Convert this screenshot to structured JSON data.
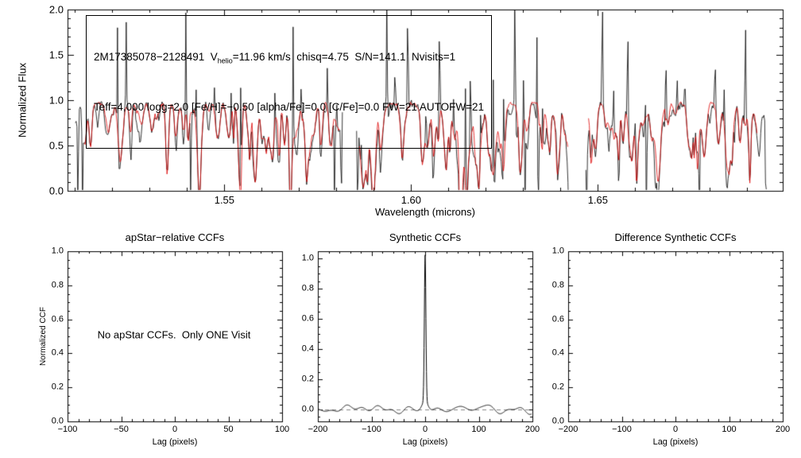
{
  "figure": {
    "background": "#ffffff",
    "axis_color": "#000000"
  },
  "chart_data": [
    {
      "id": "apogee-spectrum",
      "type": "line",
      "title": "",
      "xlabel": "Wavelength (microns)",
      "ylabel": "Normalized Flux",
      "xlim": [
        1.508,
        1.6995
      ],
      "ylim": [
        0.0,
        2.0
      ],
      "xticks": [
        1.55,
        1.6,
        1.65
      ],
      "xtick_labels": [
        "1.55",
        "1.60",
        "1.65"
      ],
      "x_minor_step": 0.01,
      "yticks": [
        0.0,
        0.5,
        1.0,
        1.5,
        2.0
      ],
      "ytick_labels": [
        "0.0",
        "0.5",
        "1.0",
        "1.5",
        "2.0"
      ],
      "y_minor_step": 0.1,
      "annotation": {
        "line1_pre": "2M17385078−2128491  V",
        "v_sub": "helio",
        "line1_post": "=11.96 km/s  chisq=4.75  S/N=141.1  Nvisits=1",
        "line2": "Teff=4,000 logg=2.0 [Fe/H]=−0.50 [alpha/Fe]=0.0 [C/Fe]=0.0 FW=21 AUTOFW=21"
      },
      "series": [
        {
          "name": "observed spectrum",
          "color": "#000000"
        },
        {
          "name": "best-fit synthetic spectrum",
          "color": "#dd0000"
        }
      ],
      "baseline": 0.965,
      "noise_observed": 0.02,
      "noise_model": 0.012,
      "segments": [
        [
          1.5101,
          1.5816
        ],
        [
          1.5854,
          1.6425
        ],
        [
          1.6468,
          1.6953
        ]
      ],
      "model_segments": [
        [
          1.5125,
          1.581
        ],
        [
          1.5862,
          1.642
        ],
        [
          1.6475,
          1.6928
        ]
      ],
      "absorption_lines": {
        "count": 320,
        "max_depth": 0.5,
        "min_width": 0.00022,
        "max_width": 0.0008,
        "seed": 7
      },
      "observed_extra_lines": {
        "count": 110,
        "max_depth": 0.4,
        "min_width": 0.0002,
        "max_width": 0.0005,
        "seed": 21
      },
      "spikes_up": [
        [
          1.5214,
          2.25
        ],
        [
          1.5237,
          1.95
        ],
        [
          1.5397,
          2.25
        ],
        [
          1.5425,
          1.5
        ],
        [
          1.5474,
          1.28
        ],
        [
          1.5518,
          1.33
        ],
        [
          1.5544,
          2.25
        ],
        [
          1.5635,
          1.35
        ],
        [
          1.5684,
          2.25
        ],
        [
          1.5706,
          1.3
        ],
        [
          1.5776,
          1.45
        ],
        [
          1.5801,
          1.22
        ],
        [
          1.5867,
          1.25
        ],
        [
          1.5903,
          1.3
        ],
        [
          1.5935,
          2.25
        ],
        [
          1.5957,
          1.32
        ],
        [
          1.5991,
          2.25
        ],
        [
          1.604,
          1.4
        ],
        [
          1.6076,
          2.25
        ],
        [
          1.6114,
          1.4
        ],
        [
          1.6146,
          2.25
        ],
        [
          1.6159,
          1.9
        ],
        [
          1.6186,
          1.35
        ],
        [
          1.622,
          2.25
        ],
        [
          1.6248,
          1.9
        ],
        [
          1.6278,
          2.25
        ],
        [
          1.6301,
          1.5
        ],
        [
          1.6337,
          1.97
        ],
        [
          1.6352,
          1.45
        ],
        [
          1.6389,
          1.3
        ],
        [
          1.6484,
          1.3
        ],
        [
          1.6512,
          2.25
        ],
        [
          1.6542,
          1.5
        ],
        [
          1.658,
          2.25
        ],
        [
          1.6601,
          1.45
        ],
        [
          1.6627,
          1.35
        ],
        [
          1.6657,
          1.25
        ],
        [
          1.6682,
          1.9
        ],
        [
          1.6712,
          1.45
        ],
        [
          1.6733,
          1.3
        ],
        [
          1.6767,
          1.25
        ],
        [
          1.6814,
          1.55
        ],
        [
          1.6839,
          1.55
        ],
        [
          1.6895,
          2.25
        ]
      ],
      "spikes_down": [
        1.5108,
        1.512,
        1.541,
        1.5795,
        1.5813,
        1.5857,
        1.6305,
        1.634,
        1.6422,
        1.647,
        1.663,
        1.6772,
        1.695
      ],
      "seed": 12345
    },
    {
      "id": "apstar-relative-ccfs",
      "type": "line",
      "title": "apStar−relative CCFs",
      "xlabel": "Lag (pixels)",
      "ylabel": "Normalized CCF",
      "xlim": [
        -100,
        100
      ],
      "ylim": [
        0.0,
        1.0
      ],
      "xticks": [
        -100,
        -50,
        0,
        50,
        100
      ],
      "xtick_labels": [
        "−100",
        "−50",
        "0",
        "50",
        "100"
      ],
      "x_minor_step": 10,
      "yticks": [
        0.0,
        0.2,
        0.4,
        0.6,
        0.8,
        1.0
      ],
      "ytick_labels": [
        "0.0",
        "0.2",
        "0.4",
        "0.6",
        "0.8",
        "1.0"
      ],
      "y_minor_step": 0.05,
      "message": "No apStar CCFs.  Only ONE Visit",
      "series": []
    },
    {
      "id": "synthetic-ccfs",
      "type": "line",
      "title": "Synthetic CCFs",
      "xlabel": "Lag (pixels)",
      "ylabel": "",
      "xlim": [
        -200,
        200
      ],
      "ylim": [
        -0.08,
        1.05
      ],
      "xticks": [
        -200,
        -100,
        0,
        100,
        200
      ],
      "xtick_labels": [
        "−200",
        "−100",
        "0",
        "100",
        "200"
      ],
      "x_minor_step": 20,
      "yticks": [
        0.0,
        0.2,
        0.4,
        0.6,
        0.8,
        1.0
      ],
      "ytick_labels": [
        "0.0",
        "0.2",
        "0.4",
        "0.6",
        "0.8",
        "1.0"
      ],
      "y_minor_step": 0.05,
      "series": [
        {
          "name": "synthetic CCF",
          "color": "#000000"
        }
      ],
      "peak": {
        "center": 0,
        "height": 0.97,
        "sigma": 2.0,
        "shoulder_height": 0.07,
        "shoulder_sigma": 8
      },
      "noise_amp": 0.011,
      "zero_line": {
        "y": 0,
        "color": "#888888",
        "style": "dashed"
      },
      "seed": 99
    },
    {
      "id": "difference-synthetic-ccfs",
      "type": "line",
      "title": "Difference Synthetic CCFs",
      "xlabel": "Lag (pixels)",
      "ylabel": "",
      "xlim": [
        -200,
        200
      ],
      "ylim": [
        0.0,
        1.0
      ],
      "xticks": [
        -200,
        -100,
        0,
        100,
        200
      ],
      "xtick_labels": [
        "−200",
        "−100",
        "0",
        "100",
        "200"
      ],
      "x_minor_step": 20,
      "yticks": [
        0.0,
        0.2,
        0.4,
        0.6,
        0.8,
        1.0
      ],
      "ytick_labels": [
        "0.0",
        "0.2",
        "0.4",
        "0.6",
        "0.8",
        "1.0"
      ],
      "y_minor_step": 0.05,
      "series": []
    }
  ]
}
